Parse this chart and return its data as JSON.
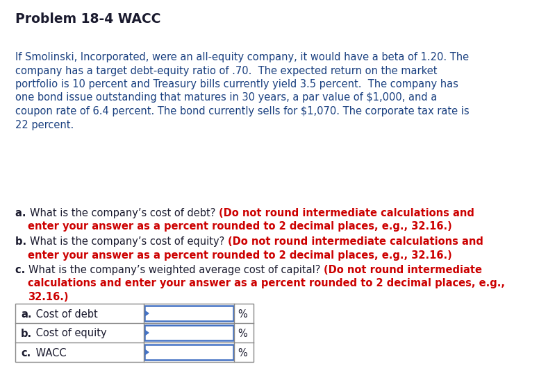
{
  "title": "Problem 18-4 WACC",
  "bg_color": "#ffffff",
  "title_color": "#1a1a2e",
  "body_color": "#1a4080",
  "black_color": "#1a1a2e",
  "red_color": "#cc0000",
  "input_box_color": "#4472c4",
  "body_lines": [
    "If Smolinski, Incorporated, were an all-equity company, it would have a beta of 1.20. The",
    "company has a target debt-equity ratio of .70.  The expected return on the market",
    "portfolio is 10 percent and Treasury bills currently yield 3.5 percent.  The company has",
    "one bond issue outstanding that matures in 30 years, a par value of $1,000, and a",
    "coupon rate of 6.4 percent. The bond currently sells for $1,070. The corporate tax rate is",
    "22 percent."
  ],
  "q_a_parts": [
    [
      "a. ",
      "What is the company’s cost of debt? ",
      "(Do not round intermediate calculations and"
    ],
    [
      "",
      "     enter your answer as a percent rounded to 2 decimal places, e.g., 32.16.",
      ""
    ]
  ],
  "q_b_parts": [
    [
      "b. ",
      "What is the company’s cost of equity? ",
      "(Do not round intermediate calculations and"
    ],
    [
      "",
      "     enter your answer as a percent rounded to 2 decimal places, e.g., 32.16.",
      ""
    ]
  ],
  "q_c_parts": [
    [
      "c. ",
      "What is the company’s weighted average cost of capital? ",
      "(Do not round intermediate"
    ],
    [
      "",
      "     calculations and enter your answer as a percent rounded to 2 decimal places, e.g.,",
      ""
    ],
    [
      "",
      "     32.16.)",
      ""
    ]
  ],
  "table_labels_bold": [
    "a.",
    "b.",
    "c."
  ],
  "table_labels_normal": [
    " Cost of debt",
    " Cost of equity",
    " WACC"
  ]
}
